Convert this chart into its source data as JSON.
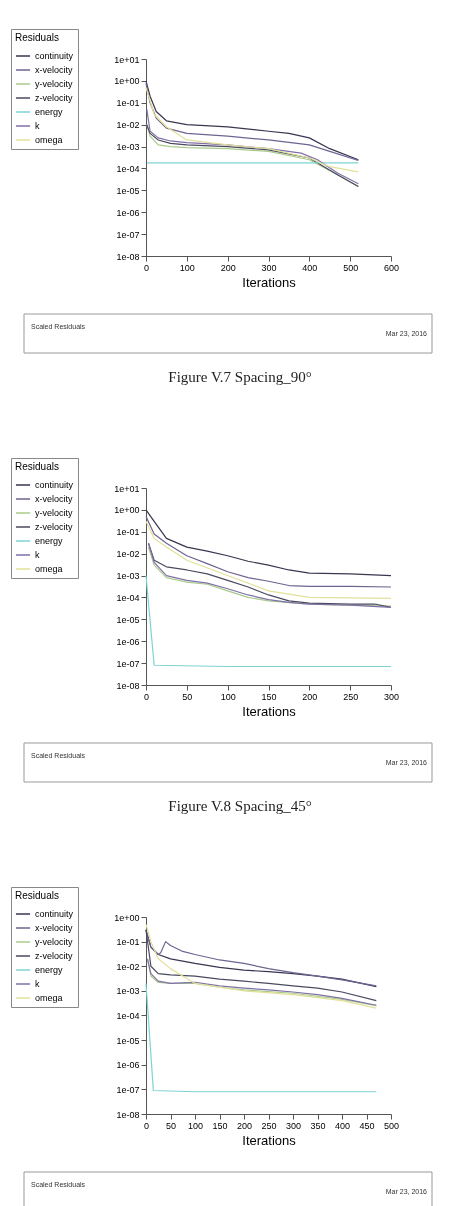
{
  "chart_data": [
    {
      "type": "line",
      "title": "Figure V.7 Spacing_90°",
      "xlabel": "Iterations",
      "legend_title": "Residuals",
      "legend": "left",
      "log": "y",
      "grid": false,
      "annotations": [
        "Scaled Residuals",
        "Mar 23, 2016"
      ],
      "xlim": [
        0,
        600
      ],
      "xticks": [
        0,
        100,
        200,
        300,
        400,
        500,
        600
      ],
      "ylim": [
        1e-08,
        10
      ],
      "yticks": [
        {
          "value": 10,
          "label": "1e+01"
        },
        {
          "value": 1,
          "label": "1e+00"
        },
        {
          "value": 0.1,
          "label": "1e-01"
        },
        {
          "value": 0.01,
          "label": "1e-02"
        },
        {
          "value": 0.001,
          "label": "1e-03"
        },
        {
          "value": 0.0001,
          "label": "1e-04"
        },
        {
          "value": 1e-05,
          "label": "1e-05"
        },
        {
          "value": 1e-06,
          "label": "1e-06"
        },
        {
          "value": 1e-07,
          "label": "1e-07"
        },
        {
          "value": 1e-08,
          "label": "1e-08"
        }
      ],
      "series": [
        {
          "name": "continuity",
          "color": "#3a3550",
          "x": [
            0,
            10,
            25,
            50,
            100,
            200,
            300,
            350,
            400,
            450,
            520
          ],
          "values": [
            1,
            0.2,
            0.04,
            0.015,
            0.01,
            0.008,
            0.005,
            0.004,
            0.0025,
            0.0008,
            0.00025
          ]
        },
        {
          "name": "x-velocity",
          "color": "#6f6390",
          "x": [
            0,
            10,
            25,
            50,
            100,
            200,
            300,
            400,
            450,
            520
          ],
          "values": [
            0.8,
            0.1,
            0.02,
            0.007,
            0.004,
            0.003,
            0.002,
            0.0012,
            0.0006,
            0.00023
          ]
        },
        {
          "name": "y-velocity",
          "color": "#a8cc8a",
          "x": [
            2,
            10,
            30,
            60,
            100,
            200,
            300,
            400,
            470,
            520
          ],
          "values": [
            0.01,
            0.003,
            0.0012,
            0.001,
            0.0009,
            0.0008,
            0.0006,
            0.00025,
            5e-05,
            1.5e-05
          ]
        },
        {
          "name": "z-velocity",
          "color": "#4a4a60",
          "x": [
            2,
            10,
            30,
            60,
            100,
            200,
            300,
            400,
            470,
            520
          ],
          "values": [
            0.01,
            0.004,
            0.002,
            0.0014,
            0.0012,
            0.001,
            0.0007,
            0.0003,
            5e-05,
            1.5e-05
          ]
        },
        {
          "name": "energy",
          "color": "#7fd3d3",
          "x": [
            2,
            100,
            200,
            300,
            400,
            520
          ],
          "values": [
            0.00018,
            0.00018,
            0.00018,
            0.00018,
            0.00018,
            0.00018
          ]
        },
        {
          "name": "k",
          "color": "#8070a8",
          "x": [
            2,
            10,
            30,
            60,
            100,
            200,
            300,
            380,
            420,
            470,
            520
          ],
          "values": [
            0.05,
            0.005,
            0.0025,
            0.0018,
            0.0015,
            0.0012,
            0.0008,
            0.0005,
            0.00025,
            6e-05,
            2e-05
          ]
        },
        {
          "name": "omega",
          "color": "#e3e09a",
          "x": [
            0,
            20,
            50,
            100,
            200,
            300,
            400,
            450,
            520
          ],
          "values": [
            0.5,
            0.03,
            0.008,
            0.002,
            0.0012,
            0.0008,
            0.0003,
            0.00012,
            7e-05
          ]
        }
      ]
    },
    {
      "type": "line",
      "title": "Figure V.8 Spacing_45°",
      "xlabel": "Iterations",
      "legend_title": "Residuals",
      "legend": "left",
      "log": "y",
      "grid": false,
      "annotations": [
        "Scaled Residuals",
        "Mar 23, 2016"
      ],
      "xlim": [
        0,
        300
      ],
      "xticks": [
        0,
        50,
        100,
        150,
        200,
        250,
        300
      ],
      "ylim": [
        1e-08,
        10
      ],
      "yticks": [
        {
          "value": 10,
          "label": "1e+01"
        },
        {
          "value": 1,
          "label": "1e+00"
        },
        {
          "value": 0.1,
          "label": "1e-01"
        },
        {
          "value": 0.01,
          "label": "1e-02"
        },
        {
          "value": 0.001,
          "label": "1e-03"
        },
        {
          "value": 0.0001,
          "label": "1e-04"
        },
        {
          "value": 1e-05,
          "label": "1e-05"
        },
        {
          "value": 1e-06,
          "label": "1e-06"
        },
        {
          "value": 1e-07,
          "label": "1e-07"
        },
        {
          "value": 1e-08,
          "label": "1e-08"
        }
      ],
      "series": [
        {
          "name": "continuity",
          "color": "#3a3550",
          "x": [
            0,
            10,
            25,
            50,
            75,
            100,
            125,
            150,
            175,
            200,
            250,
            300
          ],
          "values": [
            1,
            0.3,
            0.05,
            0.02,
            0.013,
            0.008,
            0.0045,
            0.003,
            0.0018,
            0.0013,
            0.0012,
            0.001
          ]
        },
        {
          "name": "x-velocity",
          "color": "#6f6390",
          "x": [
            0,
            10,
            25,
            50,
            75,
            100,
            125,
            150,
            175,
            200,
            250,
            300
          ],
          "values": [
            0.5,
            0.08,
            0.03,
            0.008,
            0.0035,
            0.0015,
            0.0008,
            0.00055,
            0.00035,
            0.00032,
            0.00032,
            0.0003
          ]
        },
        {
          "name": "y-velocity",
          "color": "#a8cc8a",
          "x": [
            3,
            10,
            25,
            50,
            75,
            100,
            125,
            150,
            200,
            300
          ],
          "values": [
            0.02,
            0.003,
            0.0008,
            0.0005,
            0.0004,
            0.0002,
            0.0001,
            7e-05,
            5e-05,
            4e-05
          ]
        },
        {
          "name": "z-velocity",
          "color": "#4a4a60",
          "x": [
            3,
            10,
            25,
            50,
            75,
            100,
            125,
            150,
            175,
            200,
            250,
            280,
            300
          ],
          "values": [
            0.03,
            0.005,
            0.0025,
            0.0018,
            0.0012,
            0.0006,
            0.0003,
            0.00013,
            7e-05,
            5.5e-05,
            5e-05,
            5e-05,
            3.5e-05
          ]
        },
        {
          "name": "energy",
          "color": "#7fd3d3",
          "x": [
            0,
            10,
            100,
            200,
            300
          ],
          "values": [
            0.001,
            8e-08,
            7e-08,
            7e-08,
            7e-08
          ]
        },
        {
          "name": "k",
          "color": "#8070a8",
          "x": [
            3,
            10,
            25,
            50,
            75,
            100,
            125,
            150,
            175,
            200,
            250,
            300
          ],
          "values": [
            0.03,
            0.004,
            0.001,
            0.0006,
            0.00045,
            0.00025,
            0.00013,
            8e-05,
            6e-05,
            5e-05,
            4.5e-05,
            3.5e-05
          ]
        },
        {
          "name": "omega",
          "color": "#e3e09a",
          "x": [
            0,
            10,
            25,
            50,
            100,
            150,
            200,
            300
          ],
          "values": [
            0.3,
            0.05,
            0.02,
            0.005,
            0.001,
            0.0002,
            0.0001,
            9e-05
          ]
        }
      ]
    },
    {
      "type": "line",
      "xlabel": "Iterations",
      "legend_title": "Residuals",
      "legend": "left",
      "log": "y",
      "grid": false,
      "annotations": [
        "Scaled Residuals",
        "Mar 23, 2016"
      ],
      "xlim": [
        0,
        500
      ],
      "xticks": [
        0,
        50,
        100,
        150,
        200,
        250,
        300,
        350,
        400,
        450,
        500
      ],
      "ylim": [
        1e-08,
        1
      ],
      "yticks": [
        {
          "value": 1,
          "label": "1e+00"
        },
        {
          "value": 0.1,
          "label": "1e-01"
        },
        {
          "value": 0.01,
          "label": "1e-02"
        },
        {
          "value": 0.001,
          "label": "1e-03"
        },
        {
          "value": 0.0001,
          "label": "1e-04"
        },
        {
          "value": 1e-05,
          "label": "1e-05"
        },
        {
          "value": 1e-06,
          "label": "1e-06"
        },
        {
          "value": 1e-07,
          "label": "1e-07"
        },
        {
          "value": 1e-08,
          "label": "1e-08"
        }
      ],
      "series": [
        {
          "name": "continuity",
          "color": "#3a3550",
          "x": [
            0,
            10,
            25,
            50,
            100,
            150,
            200,
            250,
            300,
            350,
            400,
            470
          ],
          "values": [
            0.3,
            0.06,
            0.03,
            0.02,
            0.013,
            0.009,
            0.007,
            0.006,
            0.005,
            0.004,
            0.003,
            0.0015
          ]
        },
        {
          "name": "x-velocity",
          "color": "#6f6390",
          "x": [
            0,
            10,
            25,
            30,
            40,
            50,
            75,
            100,
            150,
            200,
            250,
            300,
            350,
            400,
            470
          ],
          "values": [
            0.3,
            0.06,
            0.03,
            0.035,
            0.1,
            0.07,
            0.04,
            0.03,
            0.018,
            0.013,
            0.008,
            0.0055,
            0.004,
            0.0028,
            0.0016
          ]
        },
        {
          "name": "y-velocity",
          "color": "#a8cc8a",
          "x": [
            3,
            10,
            25,
            50,
            100,
            150,
            200,
            300,
            400,
            470
          ],
          "values": [
            0.02,
            0.004,
            0.0022,
            0.002,
            0.002,
            0.0014,
            0.0011,
            0.0008,
            0.00045,
            0.00025
          ]
        },
        {
          "name": "z-velocity",
          "color": "#4a4a60",
          "x": [
            0,
            10,
            25,
            50,
            100,
            150,
            200,
            250,
            300,
            350,
            400,
            470
          ],
          "values": [
            0.3,
            0.01,
            0.005,
            0.0045,
            0.004,
            0.003,
            0.0025,
            0.002,
            0.0016,
            0.0013,
            0.0009,
            0.0004
          ]
        },
        {
          "name": "energy",
          "color": "#7fd3d3",
          "x": [
            0,
            15,
            100,
            200,
            300,
            400,
            470
          ],
          "values": [
            0.002,
            9e-08,
            8e-08,
            8e-08,
            8e-08,
            8e-08,
            8e-08
          ]
        },
        {
          "name": "k",
          "color": "#8070a8",
          "x": [
            3,
            10,
            25,
            50,
            100,
            150,
            200,
            250,
            300,
            350,
            400,
            470
          ],
          "values": [
            0.02,
            0.005,
            0.0025,
            0.002,
            0.0022,
            0.0016,
            0.0013,
            0.0011,
            0.0009,
            0.0007,
            0.0005,
            0.00026
          ]
        },
        {
          "name": "omega",
          "color": "#e3e09a",
          "x": [
            0,
            10,
            25,
            50,
            100,
            200,
            300,
            400,
            470
          ],
          "values": [
            0.5,
            0.1,
            0.02,
            0.008,
            0.002,
            0.001,
            0.0007,
            0.0004,
            0.0002
          ]
        }
      ]
    }
  ]
}
